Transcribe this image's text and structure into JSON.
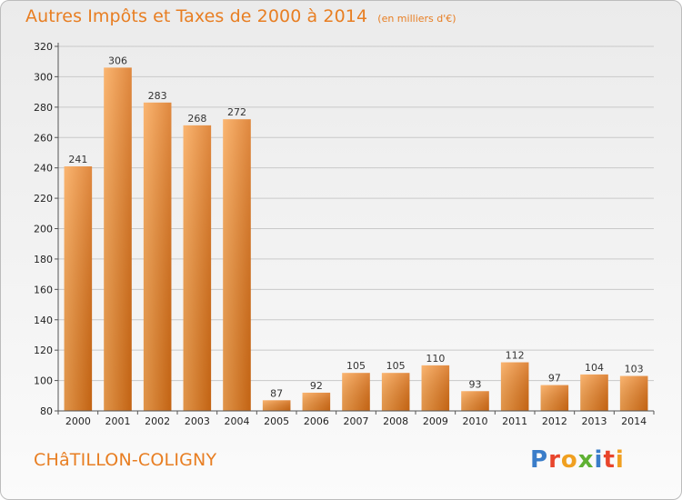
{
  "header": {
    "title": "Autres Impôts et Taxes de 2000 à 2014",
    "subtitle": "(en milliers d'€)"
  },
  "footer": {
    "commune": "CHâTILLON-COLIGNY",
    "logo_text": "Proxiti"
  },
  "colors": {
    "bar_light": "#f9a552",
    "bar_dark": "#d86e15",
    "title": "#e87e22",
    "logo": [
      "#3a7dc9",
      "#e8452c",
      "#f0a020",
      "#5fb133",
      "#3a7dc9",
      "#e8452c",
      "#f0a020"
    ]
  },
  "chart_data": {
    "type": "bar",
    "title": "Autres Impôts et Taxes de 2000 à 2014",
    "subtitle": "(en milliers d'€)",
    "xlabel": "",
    "ylabel": "",
    "categories": [
      "2000",
      "2001",
      "2002",
      "2003",
      "2004",
      "2005",
      "2006",
      "2007",
      "2008",
      "2009",
      "2010",
      "2011",
      "2012",
      "2013",
      "2014"
    ],
    "values": [
      241,
      306,
      283,
      268,
      272,
      87,
      92,
      105,
      105,
      110,
      93,
      112,
      97,
      104,
      103
    ],
    "ylim": [
      80,
      320
    ],
    "yticks": [
      80,
      100,
      120,
      140,
      160,
      180,
      200,
      220,
      240,
      260,
      280,
      300,
      320
    ],
    "grid": true,
    "legend": "none"
  }
}
